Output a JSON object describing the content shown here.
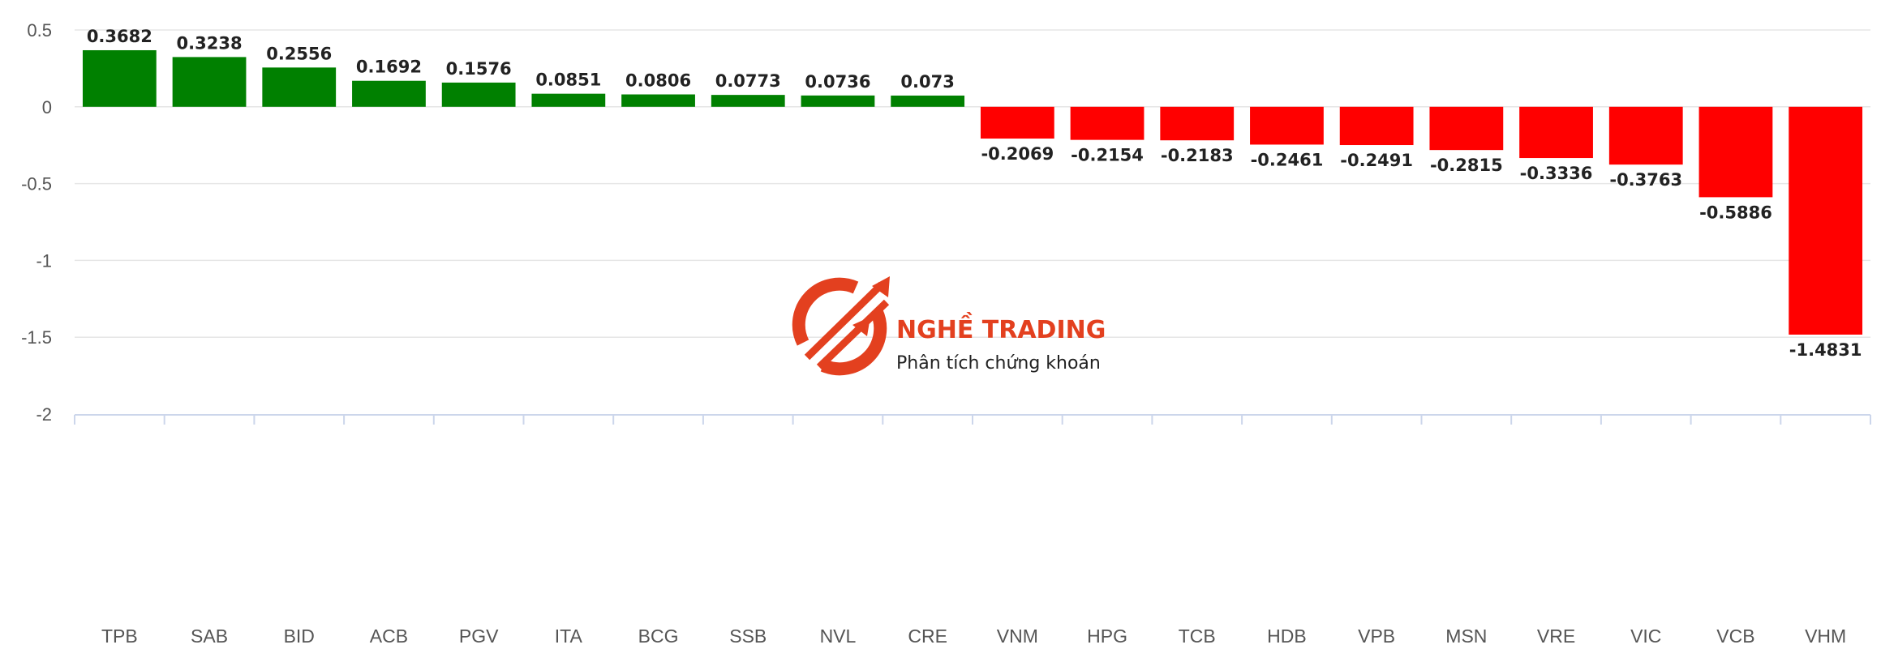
{
  "chart_data": {
    "type": "bar",
    "categories": [
      "TPB",
      "SAB",
      "BID",
      "ACB",
      "PGV",
      "ITA",
      "BCG",
      "SSB",
      "NVL",
      "CRE",
      "VNM",
      "HPG",
      "TCB",
      "HDB",
      "VPB",
      "MSN",
      "VRE",
      "VIC",
      "VCB",
      "VHM"
    ],
    "values": [
      0.3682,
      0.3238,
      0.2556,
      0.1692,
      0.1576,
      0.0851,
      0.0806,
      0.0773,
      0.0736,
      0.073,
      -0.2069,
      -0.2154,
      -0.2183,
      -0.2461,
      -0.2491,
      -0.2815,
      -0.3336,
      -0.3763,
      -0.5886,
      -1.4831
    ],
    "value_labels": [
      "0.3682",
      "0.3238",
      "0.2556",
      "0.1692",
      "0.1576",
      "0.0851",
      "0.0806",
      "0.0773",
      "0.0736",
      "0.073",
      "-0.2069",
      "-0.2154",
      "-0.2183",
      "-0.2461",
      "-0.2491",
      "-0.2815",
      "-0.3336",
      "-0.3763",
      "-0.5886",
      "-1.4831"
    ],
    "yticks": [
      "0.5",
      "0",
      "-0.5",
      "-1",
      "-1.5",
      "-2"
    ],
    "ylim": [
      -2,
      0.5
    ],
    "grid": true,
    "colors": {
      "positive": "#008000",
      "negative": "#ff0000",
      "grid": "#e6e6e6",
      "axis": "#ccd6eb"
    }
  },
  "watermark": {
    "name": "NGHỀ TRADING",
    "tagline": "Phân tích chứng khoán",
    "color": "#e3401f"
  }
}
